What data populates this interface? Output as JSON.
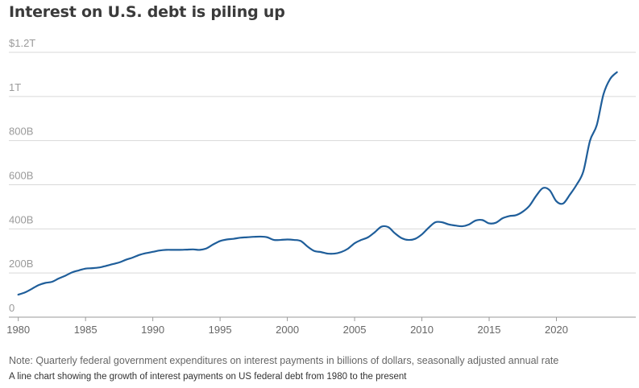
{
  "chart_data": {
    "type": "line",
    "title": "Interest on U.S. debt is piling up",
    "xlabel": "",
    "ylabel": "",
    "xlim": [
      1979.3,
      2025.9
    ],
    "ylim": [
      0,
      1200
    ],
    "grid": true,
    "y_tick_values": [
      0,
      200,
      400,
      600,
      800,
      1000,
      1200
    ],
    "y_tick_labels": [
      "0",
      "200B",
      "400B",
      "600B",
      "800B",
      "1T",
      "$1.2T"
    ],
    "x_tick_values": [
      1980,
      1985,
      1990,
      1995,
      2000,
      2005,
      2010,
      2015,
      2020
    ],
    "x_tick_labels": [
      "1980",
      "1985",
      "1990",
      "1995",
      "2000",
      "2005",
      "2010",
      "2015",
      "2020"
    ],
    "series": [
      {
        "name": "Interest payments",
        "color": "#1f5e9a",
        "x": [
          1980.0,
          1980.5,
          1981.0,
          1981.5,
          1982.0,
          1982.5,
          1983.0,
          1983.5,
          1984.0,
          1984.5,
          1985.0,
          1985.5,
          1986.0,
          1986.5,
          1987.0,
          1987.5,
          1988.0,
          1988.5,
          1989.0,
          1989.5,
          1990.0,
          1990.5,
          1991.0,
          1991.5,
          1992.0,
          1992.5,
          1993.0,
          1993.5,
          1994.0,
          1994.5,
          1995.0,
          1995.5,
          1996.0,
          1996.5,
          1997.0,
          1997.5,
          1998.0,
          1998.5,
          1999.0,
          1999.5,
          2000.0,
          2000.5,
          2001.0,
          2001.5,
          2002.0,
          2002.5,
          2003.0,
          2003.5,
          2004.0,
          2004.5,
          2005.0,
          2005.5,
          2006.0,
          2006.5,
          2007.0,
          2007.5,
          2008.0,
          2008.5,
          2009.0,
          2009.5,
          2010.0,
          2010.5,
          2011.0,
          2011.5,
          2012.0,
          2012.5,
          2013.0,
          2013.5,
          2014.0,
          2014.5,
          2015.0,
          2015.5,
          2016.0,
          2016.5,
          2017.0,
          2017.5,
          2018.0,
          2018.5,
          2019.0,
          2019.5,
          2020.0,
          2020.5,
          2021.0,
          2021.5,
          2022.0,
          2022.5,
          2023.0,
          2023.5,
          2024.0,
          2024.5
        ],
        "values": [
          102,
          112,
          128,
          145,
          155,
          160,
          175,
          188,
          203,
          212,
          220,
          222,
          225,
          232,
          240,
          248,
          260,
          270,
          282,
          290,
          296,
          302,
          305,
          305,
          305,
          306,
          307,
          305,
          312,
          330,
          345,
          352,
          355,
          360,
          362,
          364,
          365,
          362,
          350,
          350,
          352,
          350,
          345,
          320,
          300,
          295,
          288,
          288,
          295,
          310,
          335,
          350,
          362,
          385,
          410,
          408,
          380,
          358,
          350,
          355,
          375,
          405,
          430,
          430,
          420,
          415,
          412,
          420,
          438,
          440,
          425,
          428,
          448,
          458,
          462,
          478,
          505,
          550,
          585,
          575,
          525,
          515,
          555,
          600,
          660,
          800,
          870,
          1010,
          1080,
          1110
        ]
      }
    ]
  },
  "note": "Note: Quarterly federal government expenditures on interest payments in billions of dollars, seasonally adjusted annual rate",
  "caption": "A line chart showing the growth of interest payments on US federal debt from 1980 to the present"
}
